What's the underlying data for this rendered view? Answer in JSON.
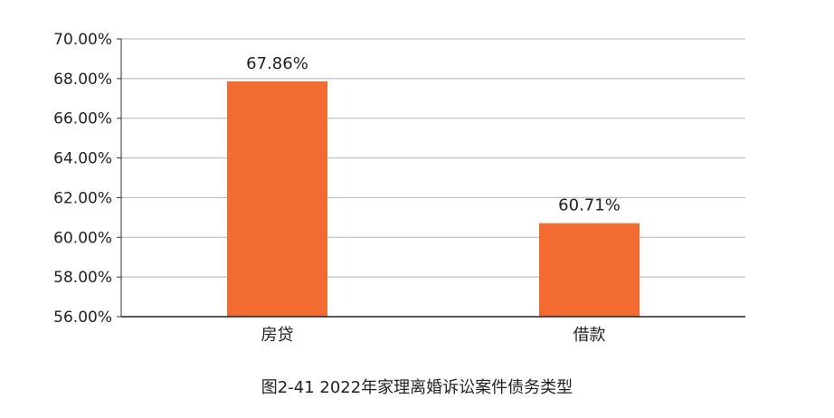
{
  "chart_data": {
    "type": "bar",
    "categories": [
      "房贷",
      "借款"
    ],
    "values": [
      67.86,
      60.71
    ],
    "data_labels": [
      "67.86%",
      "60.71%"
    ],
    "ylim": [
      56,
      70
    ],
    "yticks": [
      56,
      58,
      60,
      62,
      64,
      66,
      68,
      70
    ],
    "ytick_labels": [
      "56.00%",
      "58.00%",
      "60.00%",
      "62.00%",
      "64.00%",
      "66.00%",
      "68.00%",
      "70.00%"
    ],
    "grid": true,
    "legend": "none",
    "bar_color": "#F26B30"
  },
  "caption": "图2-41  2022年家理离婚诉讼案件债务类型"
}
